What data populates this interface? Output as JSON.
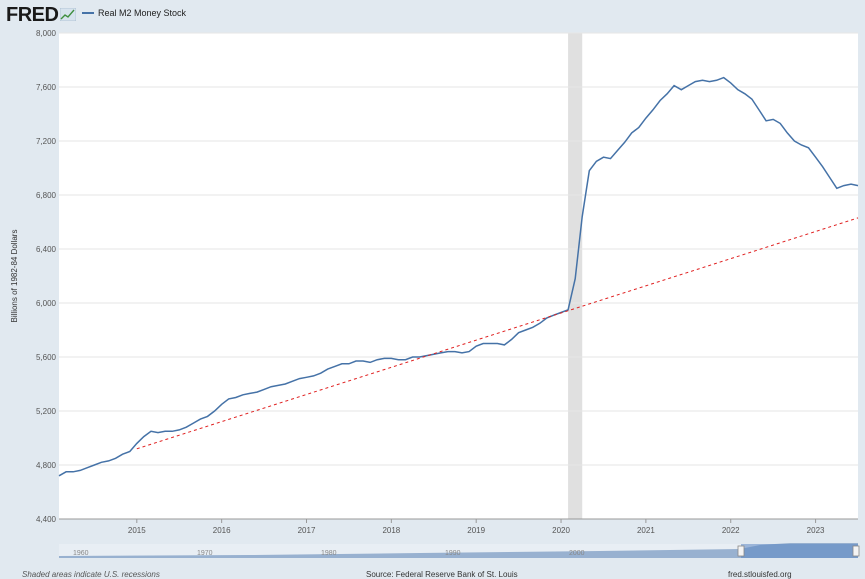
{
  "header": {
    "logo_text": "FRED",
    "legend_label": "Real M2 Money Stock",
    "series_color": "#4572a7"
  },
  "footer": {
    "left_note": "Shaded areas indicate U.S. recessions",
    "source": "Source: Federal Reserve Bank of St. Louis",
    "url": "fred.stlouisfed.org"
  },
  "navigator": {
    "year_labels": [
      "1960",
      "1970",
      "1980",
      "1990",
      "2000"
    ]
  },
  "chart_data": {
    "type": "line",
    "title": "",
    "ylabel": "Billions of 1982-84 Dollars",
    "xlabel": "",
    "ylim": [
      4400,
      8000
    ],
    "xlim": [
      2014.083,
      2023.5
    ],
    "y_ticks": [
      "4,400",
      "4,800",
      "5,200",
      "5,600",
      "6,000",
      "6,400",
      "6,800",
      "7,200",
      "7,600",
      "8,000"
    ],
    "y_tick_values": [
      4400,
      4800,
      5200,
      5600,
      6000,
      6400,
      6800,
      7200,
      7600,
      8000
    ],
    "x_ticks": [
      "2015",
      "2016",
      "2017",
      "2018",
      "2019",
      "2020",
      "2021",
      "2022",
      "2023"
    ],
    "x_tick_values": [
      2015,
      2016,
      2017,
      2018,
      2019,
      2020,
      2021,
      2022,
      2023
    ],
    "grid": true,
    "recession": {
      "start": 2020.083,
      "end": 2020.25,
      "color": "#e0e0e0"
    },
    "series": [
      {
        "name": "Real M2 Money Stock",
        "color": "#4572a7",
        "x": [
          2014.083,
          2014.167,
          2014.25,
          2014.333,
          2014.417,
          2014.5,
          2014.583,
          2014.667,
          2014.75,
          2014.833,
          2014.917,
          2015.0,
          2015.083,
          2015.167,
          2015.25,
          2015.333,
          2015.417,
          2015.5,
          2015.583,
          2015.667,
          2015.75,
          2015.833,
          2015.917,
          2016.0,
          2016.083,
          2016.167,
          2016.25,
          2016.333,
          2016.417,
          2016.5,
          2016.583,
          2016.667,
          2016.75,
          2016.833,
          2016.917,
          2017.0,
          2017.083,
          2017.167,
          2017.25,
          2017.333,
          2017.417,
          2017.5,
          2017.583,
          2017.667,
          2017.75,
          2017.833,
          2017.917,
          2018.0,
          2018.083,
          2018.167,
          2018.25,
          2018.333,
          2018.417,
          2018.5,
          2018.583,
          2018.667,
          2018.75,
          2018.833,
          2018.917,
          2019.0,
          2019.083,
          2019.167,
          2019.25,
          2019.333,
          2019.417,
          2019.5,
          2019.583,
          2019.667,
          2019.75,
          2019.833,
          2019.917,
          2020.0,
          2020.083,
          2020.167,
          2020.25,
          2020.333,
          2020.417,
          2020.5,
          2020.583,
          2020.667,
          2020.75,
          2020.833,
          2020.917,
          2021.0,
          2021.083,
          2021.167,
          2021.25,
          2021.333,
          2021.417,
          2021.5,
          2021.583,
          2021.667,
          2021.75,
          2021.833,
          2021.917,
          2022.0,
          2022.083,
          2022.167,
          2022.25,
          2022.333,
          2022.417,
          2022.5,
          2022.583,
          2022.667,
          2022.75,
          2022.833,
          2022.917,
          2023.0,
          2023.083,
          2023.167,
          2023.25,
          2023.333,
          2023.417,
          2023.5
        ],
        "y": [
          4720,
          4750,
          4750,
          4760,
          4780,
          4800,
          4820,
          4830,
          4850,
          4880,
          4900,
          4960,
          5010,
          5050,
          5040,
          5050,
          5050,
          5060,
          5080,
          5110,
          5140,
          5160,
          5200,
          5250,
          5290,
          5300,
          5320,
          5330,
          5340,
          5360,
          5380,
          5390,
          5400,
          5420,
          5440,
          5450,
          5460,
          5480,
          5510,
          5530,
          5550,
          5550,
          5570,
          5570,
          5560,
          5580,
          5590,
          5590,
          5580,
          5580,
          5600,
          5600,
          5610,
          5620,
          5630,
          5640,
          5640,
          5630,
          5640,
          5680,
          5700,
          5700,
          5700,
          5690,
          5730,
          5780,
          5800,
          5820,
          5850,
          5890,
          5910,
          5930,
          5950,
          6180,
          6640,
          6980,
          7050,
          7080,
          7070,
          7130,
          7190,
          7260,
          7300,
          7370,
          7430,
          7500,
          7550,
          7610,
          7580,
          7610,
          7640,
          7650,
          7640,
          7650,
          7670,
          7630,
          7580,
          7550,
          7510,
          7430,
          7350,
          7360,
          7330,
          7260,
          7200,
          7170,
          7150,
          7080,
          7010,
          6930,
          6850,
          6870,
          6880,
          6870
        ]
      },
      {
        "name": "",
        "style": "dashed",
        "color": "#e02020",
        "x": [
          2015.0,
          2023.5
        ],
        "y": [
          4920,
          6630
        ]
      }
    ]
  }
}
